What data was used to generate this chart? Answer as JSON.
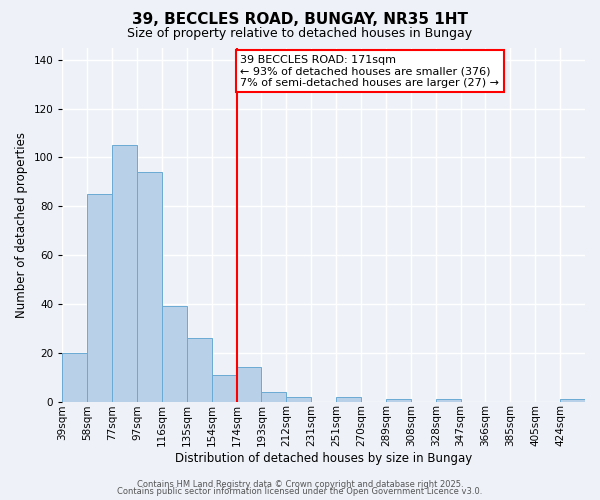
{
  "title": "39, BECCLES ROAD, BUNGAY, NR35 1HT",
  "subtitle": "Size of property relative to detached houses in Bungay",
  "xlabel": "Distribution of detached houses by size in Bungay",
  "ylabel": "Number of detached properties",
  "bar_values": [
    20,
    85,
    105,
    94,
    39,
    26,
    11,
    14,
    4,
    2,
    0,
    2,
    0,
    1,
    0,
    1,
    0,
    0,
    0,
    0,
    1
  ],
  "bin_labels": [
    "39sqm",
    "58sqm",
    "77sqm",
    "97sqm",
    "116sqm",
    "135sqm",
    "154sqm",
    "174sqm",
    "193sqm",
    "212sqm",
    "231sqm",
    "251sqm",
    "270sqm",
    "289sqm",
    "308sqm",
    "328sqm",
    "347sqm",
    "366sqm",
    "385sqm",
    "405sqm",
    "424sqm"
  ],
  "bar_color": "#b8d0e8",
  "bar_edge_color": "#6aaad4",
  "vline_bar_index": 7,
  "vline_color": "red",
  "annotation_text": "39 BECCLES ROAD: 171sqm\n← 93% of detached houses are smaller (376)\n7% of semi-detached houses are larger (27) →",
  "annotation_box_color": "white",
  "annotation_box_edge_color": "red",
  "ylim": [
    0,
    145
  ],
  "yticks": [
    0,
    20,
    40,
    60,
    80,
    100,
    120,
    140
  ],
  "footer1": "Contains HM Land Registry data © Crown copyright and database right 2025.",
  "footer2": "Contains public sector information licensed under the Open Government Licence v3.0.",
  "background_color": "#eef2f8",
  "grid_color": "white",
  "title_fontsize": 11,
  "subtitle_fontsize": 9,
  "label_fontsize": 8.5,
  "tick_fontsize": 7.5,
  "annotation_fontsize": 8,
  "footer_fontsize": 6
}
